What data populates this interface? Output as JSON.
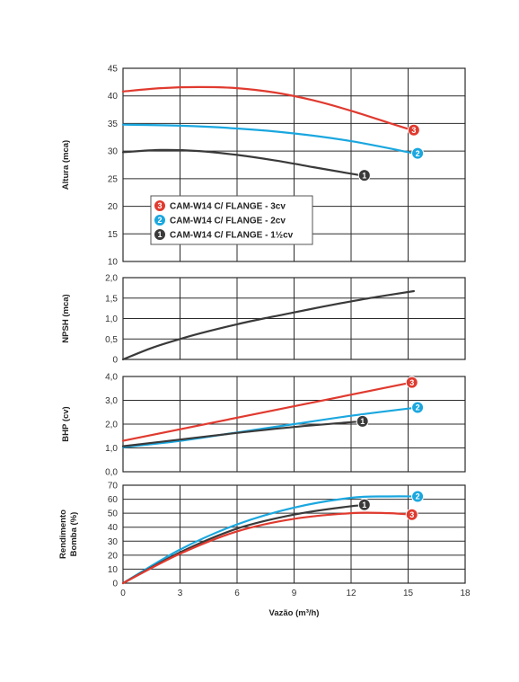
{
  "chart_data": {
    "type": "line",
    "xlabel": "Vazão (m³/h)",
    "x_ticks": [
      "0",
      "3",
      "6",
      "9",
      "12",
      "15",
      "18"
    ],
    "xlim": [
      0,
      18
    ],
    "colors": {
      "3": "#e03a2f",
      "2": "#1aa7df",
      "1": "#3a3a3a"
    },
    "legend": [
      {
        "id": "3",
        "label": "CAM-W14 C/ FLANGE - 3cv"
      },
      {
        "id": "2",
        "label": "CAM-W14 C/ FLANGE - 2cv"
      },
      {
        "id": "1",
        "label": "CAM-W14 C/ FLANGE - 1½cv"
      }
    ],
    "panels": [
      {
        "key": "altura",
        "ylabel": [
          "Altura (mca)"
        ],
        "ylim": [
          10,
          45
        ],
        "y_ticks": [
          "10",
          "15",
          "20",
          "25",
          "30",
          "35",
          "40",
          "45"
        ],
        "series": [
          {
            "id": "3",
            "x": [
              0,
              2,
              4,
              6,
              8,
              10,
              12,
              14,
              15.2
            ],
            "y": [
              40.8,
              41.4,
              41.6,
              41.4,
              40.6,
              39.2,
              37.3,
              35.1,
              33.8
            ]
          },
          {
            "id": "2",
            "x": [
              0,
              3,
              6,
              9,
              12,
              15.3
            ],
            "y": [
              34.8,
              34.6,
              34.1,
              33.2,
              31.8,
              29.6
            ]
          },
          {
            "id": "1",
            "x": [
              0,
              2,
              4,
              6,
              8,
              10,
              12,
              12.7
            ],
            "y": [
              29.8,
              30.2,
              30.0,
              29.3,
              28.3,
              27.1,
              25.9,
              25.5
            ]
          }
        ],
        "badges": [
          {
            "id": "3",
            "x": 15.3,
            "y": 33.8
          },
          {
            "id": "2",
            "x": 15.5,
            "y": 29.6
          },
          {
            "id": "1",
            "x": 12.7,
            "y": 25.6
          }
        ]
      },
      {
        "key": "npsh",
        "ylabel": [
          "NPSH (mca)"
        ],
        "ylim": [
          0.0,
          2.0
        ],
        "y_ticks": [
          "0",
          "0,5",
          "1,0",
          "1,5",
          "2,0"
        ],
        "series": [
          {
            "id": "1",
            "x": [
              0,
              1.5,
              3,
              4.5,
              6,
              7.5,
              9,
              10.5,
              12,
              13.5,
              15.3
            ],
            "y": [
              0.0,
              0.28,
              0.5,
              0.69,
              0.86,
              1.01,
              1.15,
              1.29,
              1.42,
              1.54,
              1.67
            ]
          }
        ],
        "badges": []
      },
      {
        "key": "bhp",
        "ylabel": [
          "BHP (cv)"
        ],
        "ylim": [
          0.0,
          4.0
        ],
        "y_ticks": [
          "0,0",
          "1,0",
          "2,0",
          "3,0",
          "4,0"
        ],
        "series": [
          {
            "id": "3",
            "x": [
              0,
              15.2
            ],
            "y": [
              1.3,
              3.75
            ]
          },
          {
            "id": "2",
            "x": [
              0,
              3,
              6,
              9,
              12,
              15.3
            ],
            "y": [
              1.03,
              1.3,
              1.65,
              2.0,
              2.35,
              2.68
            ]
          },
          {
            "id": "1",
            "x": [
              0,
              3,
              6,
              9,
              12.6
            ],
            "y": [
              1.07,
              1.35,
              1.63,
              1.88,
              2.12
            ]
          }
        ],
        "badges": [
          {
            "id": "3",
            "x": 15.2,
            "y": 3.75
          },
          {
            "id": "2",
            "x": 15.5,
            "y": 2.7
          },
          {
            "id": "1",
            "x": 12.6,
            "y": 2.12
          }
        ]
      },
      {
        "key": "rendimento",
        "ylabel": [
          "Rendimento",
          "Bomba (%)"
        ],
        "ylim": [
          0,
          70
        ],
        "y_ticks": [
          "0",
          "10",
          "20",
          "30",
          "40",
          "50",
          "60",
          "70"
        ],
        "series": [
          {
            "id": "2",
            "x": [
              0,
              3,
              6,
              9,
              12,
              14,
              15.3
            ],
            "y": [
              0,
              24,
              42,
              54,
              61,
              62,
              62
            ]
          },
          {
            "id": "1",
            "x": [
              0,
              3,
              6,
              9,
              12,
              12.7
            ],
            "y": [
              0,
              22,
              39,
              49,
              55,
              55.5
            ]
          },
          {
            "id": "3",
            "x": [
              0,
              3,
              6,
              9,
              12,
              14,
              15.2
            ],
            "y": [
              0,
              21,
              37,
              46,
              50,
              50,
              49
            ]
          }
        ],
        "badges": [
          {
            "id": "2",
            "x": 15.5,
            "y": 62
          },
          {
            "id": "1",
            "x": 12.7,
            "y": 56
          },
          {
            "id": "3",
            "x": 15.2,
            "y": 49
          }
        ]
      }
    ]
  }
}
